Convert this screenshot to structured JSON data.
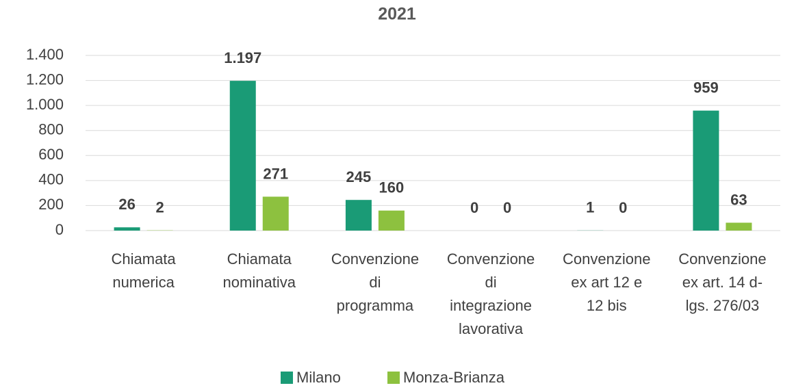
{
  "chart_data": {
    "type": "bar",
    "title": "2021",
    "categories": [
      [
        "Chiamata",
        "numerica"
      ],
      [
        "Chiamata",
        "nominativa"
      ],
      [
        "Convenzione",
        "di",
        "programma"
      ],
      [
        "Convenzione",
        "di",
        "integrazione",
        "lavorativa"
      ],
      [
        "Convenzione",
        "ex art 12 e",
        "12 bis"
      ],
      [
        "Convenzione",
        "ex art. 14 d-",
        "lgs. 276/03"
      ]
    ],
    "series": [
      {
        "name": "Milano",
        "color": "#1a9b76",
        "values": [
          26,
          1197,
          245,
          0,
          1,
          959
        ],
        "value_labels": [
          "26",
          "1.197",
          "245",
          "0",
          "1",
          "959"
        ]
      },
      {
        "name": "Monza-Brianza",
        "color": "#8dc13f",
        "values": [
          2,
          271,
          160,
          0,
          0,
          63
        ],
        "value_labels": [
          "2",
          "271",
          "160",
          "0",
          "0",
          "63"
        ]
      }
    ],
    "ylim": [
      0,
      1400
    ],
    "yticks": [
      0,
      200,
      400,
      600,
      800,
      {
        "value": 1000,
        "label": "1.000"
      },
      {
        "value": 1200,
        "label": "1.200"
      },
      {
        "value": 1400,
        "label": "1.400"
      }
    ],
    "grid": true,
    "legend": "bottom"
  }
}
